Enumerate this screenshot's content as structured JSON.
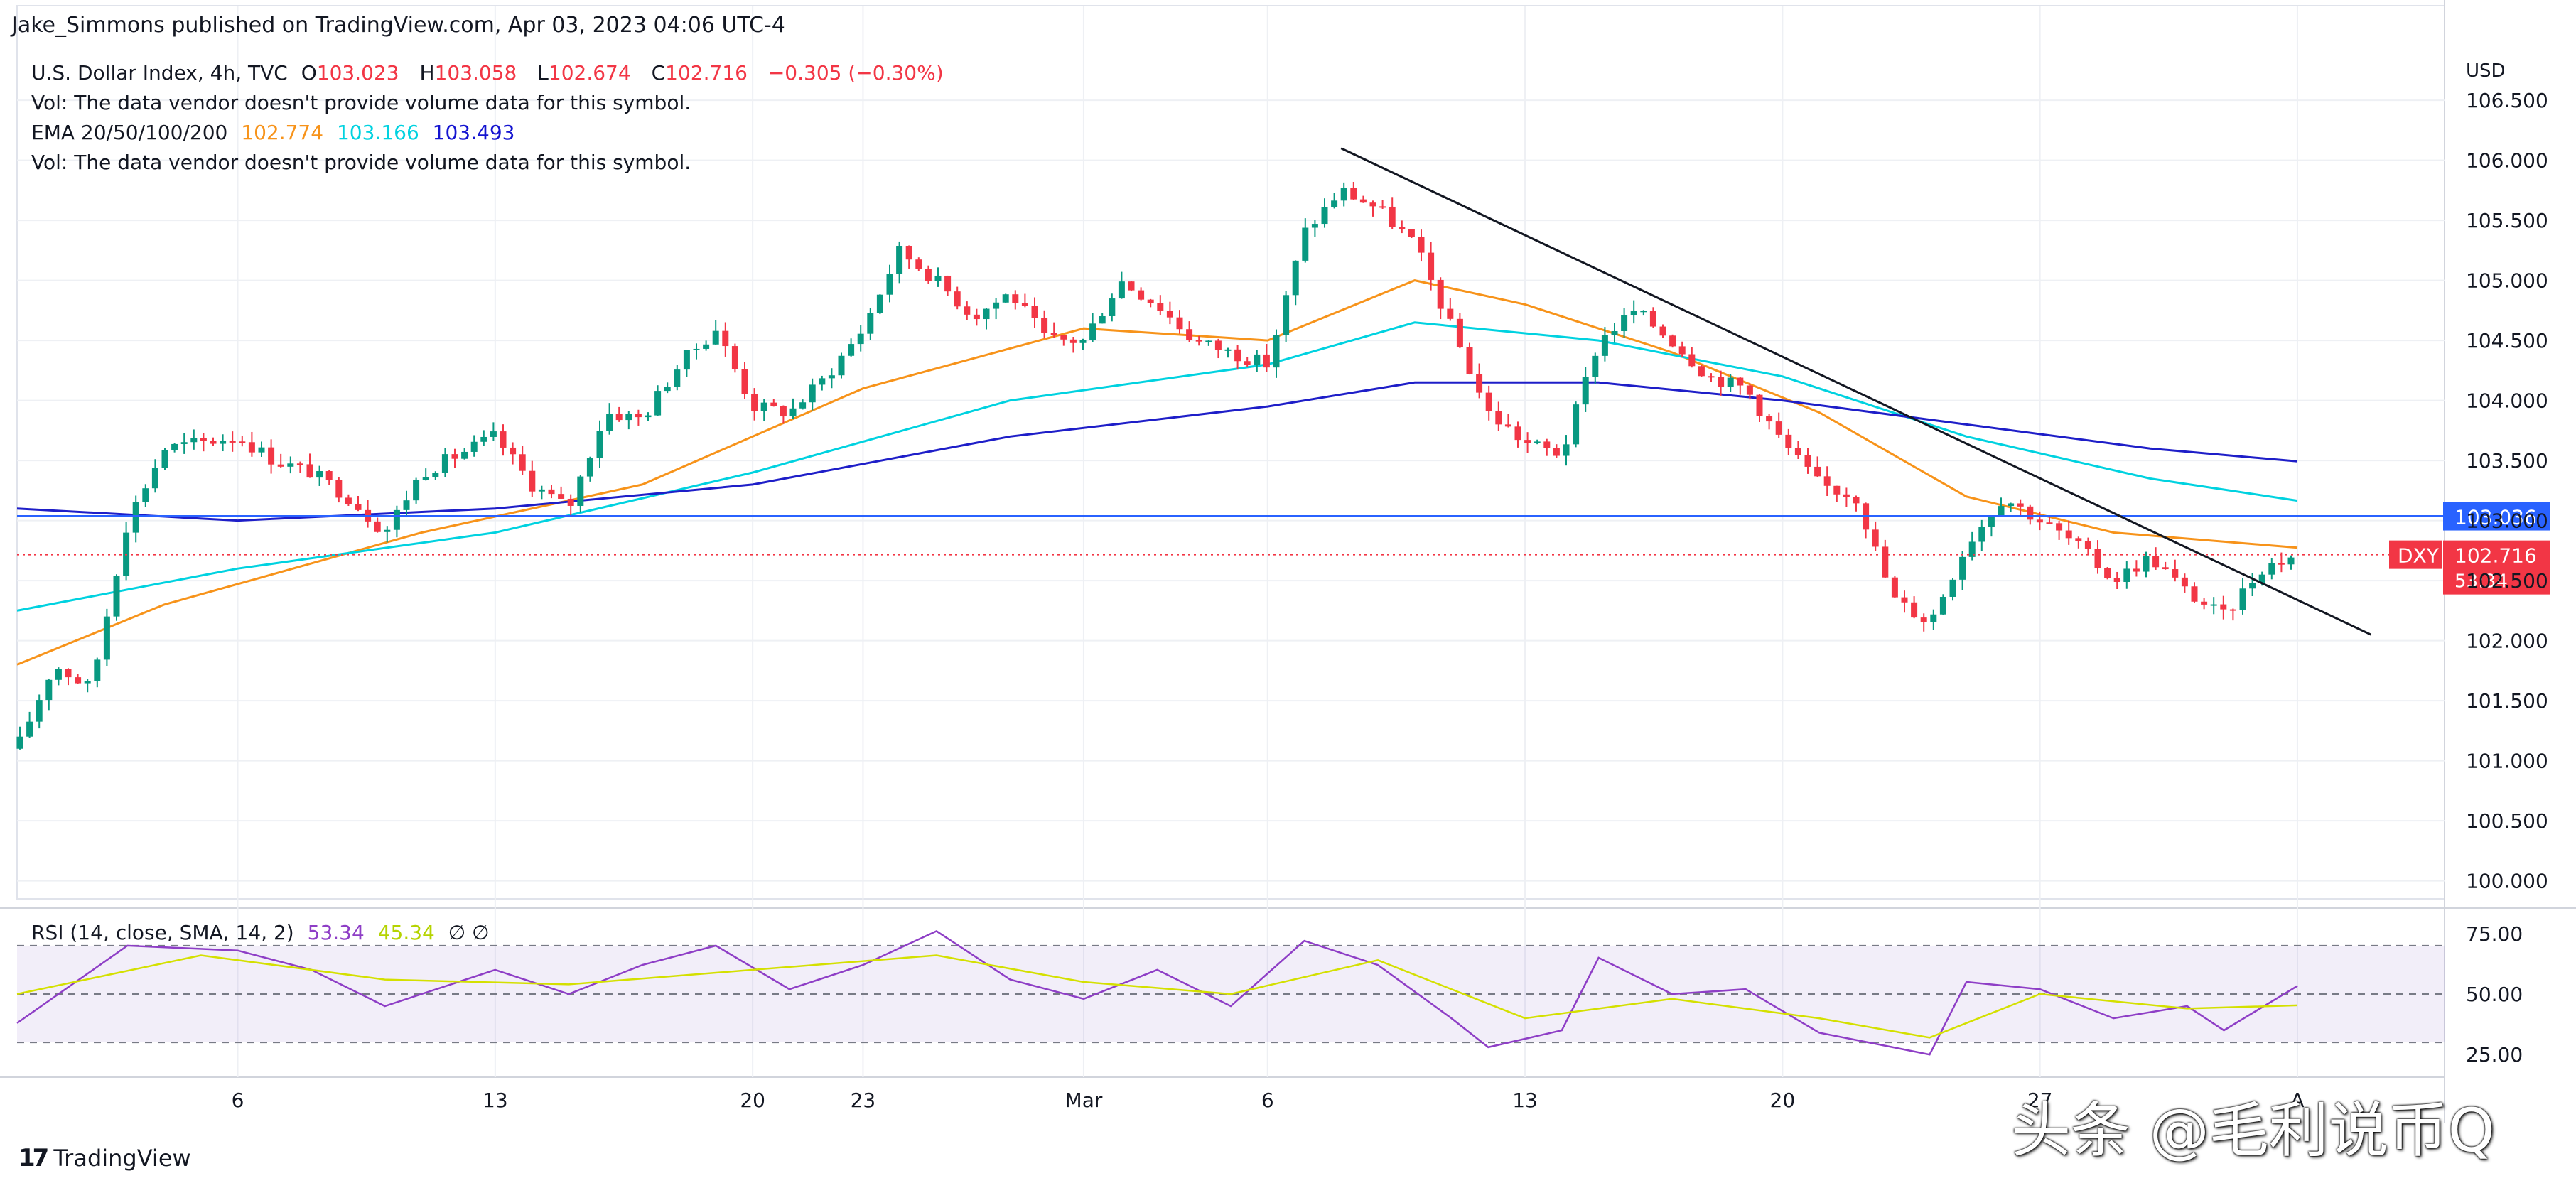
{
  "header": {
    "publisher": "Jake_Simmons published on TradingView.com, Apr 03, 2023 04:06 UTC-4"
  },
  "legend": {
    "symbol": "U.S. Dollar Index, 4h, TVC",
    "ohlc": {
      "O": "103.023",
      "H": "103.058",
      "L": "102.674",
      "C": "102.716"
    },
    "change": "−0.305 (−0.30%)",
    "vol_line_1": "Vol: The data vendor doesn't provide volume data for this symbol.",
    "ema_label": "EMA 20/50/100/200",
    "ema_values": [
      "102.774",
      "103.166",
      "103.493"
    ],
    "vol_line_2": "Vol: The data vendor doesn't provide volume data for this symbol.",
    "rsi_label": "RSI (14, close, SMA, 14, 2)",
    "rsi_values": [
      "53.34",
      "45.34"
    ],
    "rsi_extra": "∅  ∅"
  },
  "footer": {
    "brand": "TradingView",
    "watermark": "头条 @毛利说币Q"
  },
  "price_tags": {
    "level": "103.036",
    "symbol": "DXY",
    "last": "102.716",
    "countdown": "53:34"
  },
  "chart_data": {
    "type": "candlestick",
    "title": "U.S. Dollar Index, 4h, TVC",
    "y_axis": {
      "unit": "USD",
      "ticks": [
        100.0,
        100.5,
        101.0,
        101.5,
        102.0,
        102.5,
        103.0,
        103.5,
        104.0,
        104.5,
        105.0,
        105.5,
        106.0,
        106.5
      ],
      "tick_labels": [
        "100.000",
        "100.500",
        "101.000",
        "101.500",
        "102.000",
        "102.500",
        "103.000",
        "103.500",
        "104.000",
        "104.500",
        "105.000",
        "105.500",
        "106.000",
        "106.500"
      ],
      "range": [
        99.85,
        106.98
      ]
    },
    "x_axis": {
      "tick_labels": [
        "6",
        "13",
        "20",
        "23",
        "Mar",
        "6",
        "13",
        "20",
        "27",
        "A"
      ]
    },
    "horizontal_level": 103.036,
    "last_price": 102.716,
    "trendline": [
      {
        "date": "2023-03-08",
        "price": 106.1
      },
      {
        "date": "2023-04-05",
        "price": 102.05
      }
    ],
    "price_path": [
      {
        "date": "2023-01-31",
        "price": 101.1
      },
      {
        "date": "2023-02-01",
        "price": 101.8
      },
      {
        "date": "2023-02-02",
        "price": 101.6
      },
      {
        "date": "2023-02-03",
        "price": 103.0
      },
      {
        "date": "2023-02-04",
        "price": 103.6
      },
      {
        "date": "2023-02-06",
        "price": 103.7
      },
      {
        "date": "2023-02-07",
        "price": 103.5
      },
      {
        "date": "2023-02-08",
        "price": 103.4
      },
      {
        "date": "2023-02-09",
        "price": 103.2
      },
      {
        "date": "2023-02-10",
        "price": 102.9
      },
      {
        "date": "2023-02-11",
        "price": 103.4
      },
      {
        "date": "2023-02-13",
        "price": 103.7
      },
      {
        "date": "2023-02-14",
        "price": 103.3
      },
      {
        "date": "2023-02-15",
        "price": 103.1
      },
      {
        "date": "2023-02-16",
        "price": 103.9
      },
      {
        "date": "2023-02-17",
        "price": 103.85
      },
      {
        "date": "2023-02-18",
        "price": 104.3
      },
      {
        "date": "2023-02-19",
        "price": 104.6
      },
      {
        "date": "2023-02-20",
        "price": 103.95
      },
      {
        "date": "2023-02-21",
        "price": 103.9
      },
      {
        "date": "2023-02-22",
        "price": 104.2
      },
      {
        "date": "2023-02-23",
        "price": 104.6
      },
      {
        "date": "2023-02-24",
        "price": 105.25
      },
      {
        "date": "2023-02-25",
        "price": 105.0
      },
      {
        "date": "2023-02-26",
        "price": 104.7
      },
      {
        "date": "2023-02-27",
        "price": 104.9
      },
      {
        "date": "2023-02-28",
        "price": 104.5
      },
      {
        "date": "2023-03-01",
        "price": 104.5
      },
      {
        "date": "2023-03-02",
        "price": 105.0
      },
      {
        "date": "2023-03-03",
        "price": 104.8
      },
      {
        "date": "2023-03-04",
        "price": 104.5
      },
      {
        "date": "2023-03-06",
        "price": 104.3
      },
      {
        "date": "2023-03-07",
        "price": 105.4
      },
      {
        "date": "2023-03-08",
        "price": 105.75
      },
      {
        "date": "2023-03-09",
        "price": 105.6
      },
      {
        "date": "2023-03-10",
        "price": 105.3
      },
      {
        "date": "2023-03-11",
        "price": 104.6
      },
      {
        "date": "2023-03-12",
        "price": 103.9
      },
      {
        "date": "2023-03-13",
        "price": 103.65
      },
      {
        "date": "2023-03-14",
        "price": 103.55
      },
      {
        "date": "2023-03-15",
        "price": 104.5
      },
      {
        "date": "2023-03-16",
        "price": 104.75
      },
      {
        "date": "2023-03-17",
        "price": 104.5
      },
      {
        "date": "2023-03-18",
        "price": 104.2
      },
      {
        "date": "2023-03-19",
        "price": 104.1
      },
      {
        "date": "2023-03-20",
        "price": 103.65
      },
      {
        "date": "2023-03-21",
        "price": 103.3
      },
      {
        "date": "2023-03-22",
        "price": 103.2
      },
      {
        "date": "2023-03-23",
        "price": 102.35
      },
      {
        "date": "2023-03-24",
        "price": 102.15
      },
      {
        "date": "2023-03-25",
        "price": 102.8
      },
      {
        "date": "2023-03-26",
        "price": 103.2
      },
      {
        "date": "2023-03-27",
        "price": 103.0
      },
      {
        "date": "2023-03-28",
        "price": 102.8
      },
      {
        "date": "2023-03-29",
        "price": 102.5
      },
      {
        "date": "2023-03-30",
        "price": 102.7
      },
      {
        "date": "2023-03-31",
        "price": 102.4
      },
      {
        "date": "2023-04-01",
        "price": 102.2
      },
      {
        "date": "2023-04-02",
        "price": 102.6
      },
      {
        "date": "2023-04-03",
        "price": 102.72
      }
    ],
    "ema_series": [
      {
        "name": "EMA 50",
        "color": "#f7931a",
        "last": 102.774,
        "points": [
          {
            "date": "2023-01-31",
            "price": 101.8
          },
          {
            "date": "2023-02-04",
            "price": 102.3
          },
          {
            "date": "2023-02-11",
            "price": 102.9
          },
          {
            "date": "2023-02-17",
            "price": 103.3
          },
          {
            "date": "2023-02-23",
            "price": 104.1
          },
          {
            "date": "2023-03-01",
            "price": 104.6
          },
          {
            "date": "2023-03-06",
            "price": 104.5
          },
          {
            "date": "2023-03-10",
            "price": 105.0
          },
          {
            "date": "2023-03-13",
            "price": 104.8
          },
          {
            "date": "2023-03-17",
            "price": 104.4
          },
          {
            "date": "2023-03-21",
            "price": 103.9
          },
          {
            "date": "2023-03-25",
            "price": 103.2
          },
          {
            "date": "2023-03-29",
            "price": 102.9
          },
          {
            "date": "2023-04-03",
            "price": 102.774
          }
        ]
      },
      {
        "name": "EMA 100",
        "color": "#00d2e0",
        "last": 103.166,
        "points": [
          {
            "date": "2023-01-31",
            "price": 102.25
          },
          {
            "date": "2023-02-06",
            "price": 102.6
          },
          {
            "date": "2023-02-13",
            "price": 102.9
          },
          {
            "date": "2023-02-20",
            "price": 103.4
          },
          {
            "date": "2023-02-27",
            "price": 104.0
          },
          {
            "date": "2023-03-06",
            "price": 104.3
          },
          {
            "date": "2023-03-10",
            "price": 104.65
          },
          {
            "date": "2023-03-15",
            "price": 104.5
          },
          {
            "date": "2023-03-20",
            "price": 104.2
          },
          {
            "date": "2023-03-25",
            "price": 103.7
          },
          {
            "date": "2023-03-30",
            "price": 103.35
          },
          {
            "date": "2023-04-03",
            "price": 103.166
          }
        ]
      },
      {
        "name": "EMA 200",
        "color": "#1e1ec8",
        "last": 103.493,
        "points": [
          {
            "date": "2023-01-31",
            "price": 103.1
          },
          {
            "date": "2023-02-06",
            "price": 103.0
          },
          {
            "date": "2023-02-13",
            "price": 103.1
          },
          {
            "date": "2023-02-20",
            "price": 103.3
          },
          {
            "date": "2023-02-27",
            "price": 103.7
          },
          {
            "date": "2023-03-06",
            "price": 103.95
          },
          {
            "date": "2023-03-10",
            "price": 104.15
          },
          {
            "date": "2023-03-15",
            "price": 104.15
          },
          {
            "date": "2023-03-20",
            "price": 104.0
          },
          {
            "date": "2023-03-25",
            "price": 103.8
          },
          {
            "date": "2023-03-30",
            "price": 103.6
          },
          {
            "date": "2023-04-03",
            "price": 103.493
          }
        ]
      }
    ],
    "rsi": {
      "label": "RSI (14, close, SMA, 14, 2)",
      "ticks": [
        25,
        50,
        75
      ],
      "tick_labels": [
        "25.00",
        "50.00",
        "75.00"
      ],
      "band": [
        30,
        70
      ],
      "range": [
        18,
        82
      ],
      "rsi_path": [
        {
          "date": "2023-01-31",
          "price": 38
        },
        {
          "date": "2023-02-03",
          "price": 70
        },
        {
          "date": "2023-02-06",
          "price": 68
        },
        {
          "date": "2023-02-08",
          "price": 60
        },
        {
          "date": "2023-02-10",
          "price": 45
        },
        {
          "date": "2023-02-13",
          "price": 60
        },
        {
          "date": "2023-02-15",
          "price": 50
        },
        {
          "date": "2023-02-17",
          "price": 62
        },
        {
          "date": "2023-02-19",
          "price": 70
        },
        {
          "date": "2023-02-21",
          "price": 52
        },
        {
          "date": "2023-02-23",
          "price": 62
        },
        {
          "date": "2023-02-25",
          "price": 76
        },
        {
          "date": "2023-02-27",
          "price": 56
        },
        {
          "date": "2023-03-01",
          "price": 48
        },
        {
          "date": "2023-03-03",
          "price": 60
        },
        {
          "date": "2023-03-05",
          "price": 45
        },
        {
          "date": "2023-03-07",
          "price": 72
        },
        {
          "date": "2023-03-09",
          "price": 62
        },
        {
          "date": "2023-03-11",
          "price": 40
        },
        {
          "date": "2023-03-12",
          "price": 28
        },
        {
          "date": "2023-03-14",
          "price": 35
        },
        {
          "date": "2023-03-15",
          "price": 65
        },
        {
          "date": "2023-03-17",
          "price": 50
        },
        {
          "date": "2023-03-19",
          "price": 52
        },
        {
          "date": "2023-03-21",
          "price": 34
        },
        {
          "date": "2023-03-23",
          "price": 28
        },
        {
          "date": "2023-03-24",
          "price": 25
        },
        {
          "date": "2023-03-25",
          "price": 55
        },
        {
          "date": "2023-03-27",
          "price": 52
        },
        {
          "date": "2023-03-29",
          "price": 40
        },
        {
          "date": "2023-03-31",
          "price": 45
        },
        {
          "date": "2023-04-01",
          "price": 35
        },
        {
          "date": "2023-04-03",
          "price": 53.34
        }
      ],
      "sma_path": [
        {
          "date": "2023-01-31",
          "price": 50
        },
        {
          "date": "2023-02-05",
          "price": 66
        },
        {
          "date": "2023-02-10",
          "price": 56
        },
        {
          "date": "2023-02-15",
          "price": 54
        },
        {
          "date": "2023-02-20",
          "price": 60
        },
        {
          "date": "2023-02-25",
          "price": 66
        },
        {
          "date": "2023-03-01",
          "price": 55
        },
        {
          "date": "2023-03-05",
          "price": 50
        },
        {
          "date": "2023-03-09",
          "price": 64
        },
        {
          "date": "2023-03-13",
          "price": 40
        },
        {
          "date": "2023-03-17",
          "price": 48
        },
        {
          "date": "2023-03-21",
          "price": 40
        },
        {
          "date": "2023-03-24",
          "price": 32
        },
        {
          "date": "2023-03-27",
          "price": 50
        },
        {
          "date": "2023-03-31",
          "price": 44
        },
        {
          "date": "2023-04-03",
          "price": 45.34
        }
      ]
    }
  }
}
